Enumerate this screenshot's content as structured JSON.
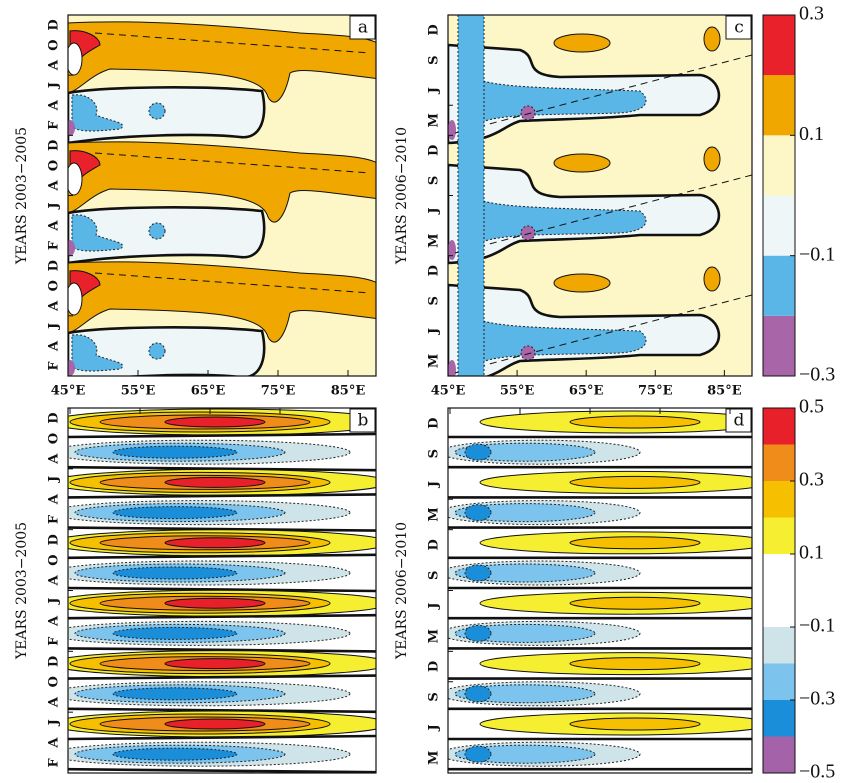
{
  "panels": [
    {
      "label": "a",
      "ylabel": "YEARS 2003−2005",
      "yticks": [
        "F",
        "A",
        "J",
        "A",
        "O",
        "D",
        "F",
        "A",
        "J",
        "A",
        "O",
        "D",
        "F",
        "A",
        "J",
        "A",
        "O",
        "D"
      ],
      "xlim": [
        45,
        89
      ],
      "xticks": [
        {
          "value": 45,
          "label": "45°E"
        },
        {
          "value": 55,
          "label": "55°E"
        },
        {
          "value": 65,
          "label": "65°E"
        },
        {
          "value": 75,
          "label": "75°E"
        },
        {
          "value": 85,
          "label": "85°E"
        }
      ]
    },
    {
      "label": "c",
      "ylabel": "YEARS 2006−2010",
      "yticks": [
        "M",
        "J",
        "S",
        "D",
        "M",
        "J",
        "S",
        "D",
        "M",
        "J",
        "S",
        "D"
      ],
      "xlim": [
        45,
        89
      ],
      "xticks": [
        {
          "value": 45,
          "label": "45°E"
        },
        {
          "value": 55,
          "label": "55°E"
        },
        {
          "value": 65,
          "label": "65°E"
        },
        {
          "value": 75,
          "label": "75°E"
        },
        {
          "value": 85,
          "label": "85°E"
        }
      ]
    },
    {
      "label": "b",
      "ylabel": "YEARS 2003−2005",
      "yticks": [
        "F",
        "A",
        "J",
        "A",
        "O",
        "D",
        "F",
        "A",
        "J",
        "A",
        "O",
        "D",
        "F",
        "A",
        "J",
        "A",
        "O",
        "D"
      ]
    },
    {
      "label": "d",
      "ylabel": "YEARS 2006−2010",
      "yticks": [
        "M",
        "J",
        "S",
        "D",
        "M",
        "J",
        "S",
        "D",
        "M",
        "J",
        "S",
        "D"
      ]
    }
  ],
  "colorbars": [
    {
      "ylim": [
        -0.3,
        0.3
      ],
      "yticks": [
        0.3,
        0.1,
        {
          "value": -0.1,
          "label": "−0.1"
        },
        {
          "value": -0.3,
          "label": "−0.3"
        }
      ],
      "colors": [
        "#a865a8",
        "#5ab6e6",
        "#eef6f8",
        "#fdf6c6",
        "#f0a800",
        "#e8212a"
      ]
    },
    {
      "ylim": [
        -0.5,
        0.5
      ],
      "yticks": [
        0.5,
        0.3,
        0.1,
        {
          "value": -0.1,
          "label": "−0.1"
        },
        {
          "value": -0.3,
          "label": "−0.3"
        },
        {
          "value": -0.5,
          "label": "−0.5"
        }
      ],
      "colors": [
        "#a463a8",
        "#1a8ed8",
        "#7cc4ee",
        "#cfe4e8",
        "#ffffff",
        "#ffffff",
        "#f6ee30",
        "#f6c000",
        "#ef8c1a",
        "#e8202a"
      ]
    }
  ]
}
